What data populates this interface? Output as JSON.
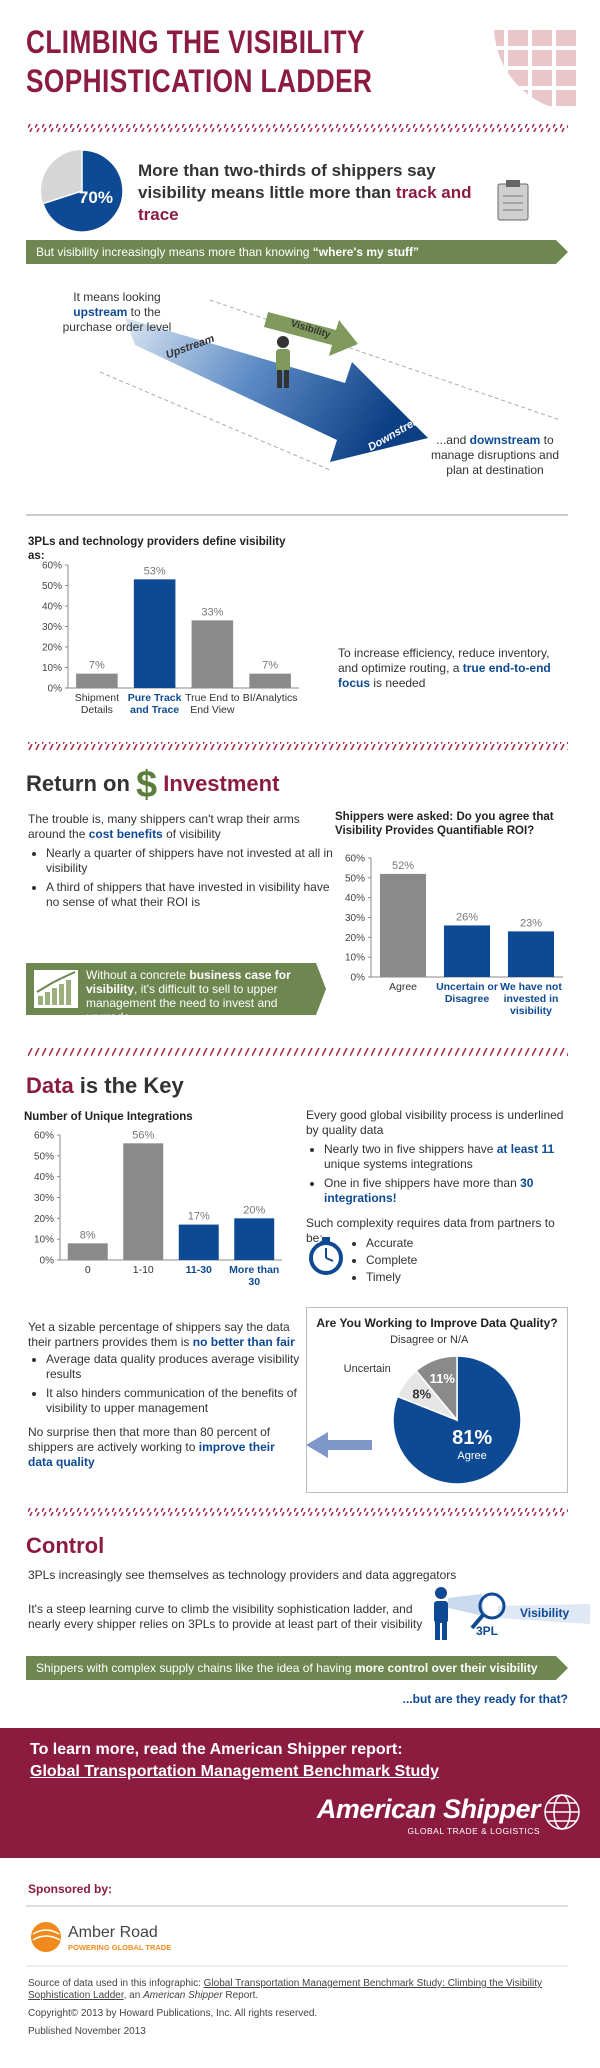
{
  "header": {
    "title_line1": "CLIMBING THE VISIBILITY",
    "title_line2": "SOPHISTICATION LADDER"
  },
  "intro": {
    "headline": [
      "More than two-thirds of shippers say visibility means little more than ",
      "track and trace"
    ],
    "banner": [
      "But visibility increasingly means more than knowing ",
      "“where's my stuff”"
    ]
  },
  "diagram": {
    "upstream_note": [
      "It means looking ",
      "upstream",
      " to the purchase order level"
    ],
    "upstream": "Upstream",
    "visibility": "Visibility",
    "downstream": "Downstream",
    "downstream_note": [
      "...and ",
      "downstream",
      " to manage disruptions and plan at destination"
    ]
  },
  "definition": {
    "note": [
      "To increase efficiency, reduce inventory, and optimize routing, a ",
      "true end-to-end focus",
      " is needed"
    ]
  },
  "roi": {
    "heading": [
      "Return on",
      "$",
      "Investment"
    ],
    "intro": [
      "The trouble is, many shippers can't wrap their arms around the ",
      "cost benefits",
      " of visibility"
    ],
    "bullets": [
      "Nearly a quarter of shippers have not invested at all in visibility",
      "A third of shippers that have invested in visibility have no sense of what their ROI is"
    ],
    "callout": [
      "Without a concrete ",
      "business case for visibility",
      ", it's difficult to sell to upper management the need to invest and upgrade"
    ]
  },
  "data": {
    "heading": [
      "Data",
      " is the Key"
    ],
    "quality_intro": "Every good global visibility process is underlined by quality data",
    "bullets": [
      [
        "Nearly two in five shippers have ",
        "at least 11",
        " unique systems integrations"
      ],
      [
        "One in five shippers have more than ",
        "30 integrations!"
      ]
    ],
    "requirements_intro": "Such complexity requires data from partners to be:",
    "requirements": [
      "Accurate",
      "Complete",
      "Timely"
    ],
    "partners": [
      "Yet a sizable percentage of shippers say the data their partners provides them is ",
      "no better than fair"
    ],
    "partner_bullets": [
      "Average data quality produces average visibility results",
      "It also hinders communication of the benefits of visibility to upper management"
    ],
    "conclusion": [
      "No surprise then that more than 80 percent of shippers are actively working to ",
      "improve their data quality"
    ]
  },
  "control": {
    "heading": "Control",
    "intro": "3PLs increasingly see themselves as technology providers and data aggregators",
    "body": "It's a steep learning curve to climb the visibility sophistication ladder, and nearly every shipper relies on 3PLs to provide at least part of their visibility",
    "icon_visibility": "Visibility",
    "icon_3pl": "3PL",
    "banner": [
      "Shippers with complex supply chains like the idea of having ",
      "more control over their visibility"
    ],
    "question": "...but are they ready for that?"
  },
  "footer": {
    "cta": "To learn more, read the American Shipper report:",
    "report": "Global Transportation Management Benchmark Study",
    "brand": "American Shipper",
    "brand_tagline": "GLOBAL TRADE & LOGISTICS",
    "sponsored": "Sponsored by:",
    "sponsor": "Amber Road",
    "sponsor_tagline": "POWERING GLOBAL TRADE",
    "source": [
      "Source of data used in this infographic: ",
      "Global Transportation Management Benchmark Study: Climbing the Visibility Sophistication Ladder",
      ", an ",
      "American Shipper",
      " Report."
    ],
    "copyright": "Copyright© 2013 by Howard Publications, Inc. All rights reserved.",
    "published": "Published November 2013"
  },
  "chart_data": [
    {
      "type": "pie",
      "values": [
        70
      ],
      "value_labels": [
        "70%"
      ],
      "colors": [
        "#0d4a93"
      ]
    },
    {
      "type": "bar",
      "title": "3PLs and technology providers define visibility as:",
      "categories": [
        "Shipment Details",
        "Pure Track and Trace",
        "True End to End View",
        "BI/Analytics"
      ],
      "values": [
        7,
        53,
        33,
        7
      ],
      "value_labels": [
        "7%",
        "53%",
        "33%",
        "7%"
      ],
      "colors": [
        "#8a8a8a",
        "#0d4a93",
        "#8a8a8a",
        "#8a8a8a"
      ],
      "label_colors": [
        "#333333",
        "#0d4a93",
        "#333333",
        "#333333"
      ],
      "ylim": [
        0,
        60
      ],
      "yticks": [
        {
          "value": 0,
          "label": "0%"
        },
        {
          "value": 10,
          "label": "10%"
        },
        {
          "value": 20,
          "label": "20%"
        },
        {
          "value": 30,
          "label": "30%"
        },
        {
          "value": 40,
          "label": "40%"
        },
        {
          "value": 50,
          "label": "50%"
        },
        {
          "value": 60,
          "label": "60%"
        }
      ]
    },
    {
      "type": "bar",
      "title": "Shippers were asked: Do you agree that Visibility Provides Quantifiable ROI?",
      "categories": [
        "Agree",
        "Uncertain or Disagree",
        "We have not invested in visibility"
      ],
      "values": [
        52,
        26,
        23
      ],
      "value_labels": [
        "52%",
        "26%",
        "23%"
      ],
      "colors": [
        "#8a8a8a",
        "#0d4a93",
        "#0d4a93"
      ],
      "label_colors": [
        "#333333",
        "#0d4a93",
        "#0d4a93"
      ],
      "ylim": [
        0,
        60
      ],
      "yticks": [
        {
          "value": 0,
          "label": "0%"
        },
        {
          "value": 10,
          "label": "10%"
        },
        {
          "value": 20,
          "label": "20%"
        },
        {
          "value": 30,
          "label": "30%"
        },
        {
          "value": 40,
          "label": "40%"
        },
        {
          "value": 50,
          "label": "50%"
        },
        {
          "value": 60,
          "label": "60%"
        }
      ]
    },
    {
      "type": "bar",
      "title": "Number of Unique Integrations",
      "categories": [
        "0",
        "1-10",
        "11-30",
        "More than 30"
      ],
      "values": [
        8,
        56,
        17,
        20
      ],
      "value_labels": [
        "8%",
        "56%",
        "17%",
        "20%"
      ],
      "colors": [
        "#8a8a8a",
        "#8a8a8a",
        "#0d4a93",
        "#0d4a93"
      ],
      "label_colors": [
        "#333333",
        "#333333",
        "#0d4a93",
        "#0d4a93"
      ],
      "ylim": [
        0,
        60
      ],
      "yticks": [
        {
          "value": 0,
          "label": "0%"
        },
        {
          "value": 10,
          "label": "10%"
        },
        {
          "value": 20,
          "label": "20%"
        },
        {
          "value": 30,
          "label": "30%"
        },
        {
          "value": 40,
          "label": "40%"
        },
        {
          "value": 50,
          "label": "50%"
        },
        {
          "value": 60,
          "label": "60%"
        }
      ]
    },
    {
      "type": "pie",
      "title": "Are You Working to Improve Data Quality?",
      "categories": [
        "Agree",
        "Uncertain",
        "Disagree or N/A"
      ],
      "values": [
        81,
        8,
        11
      ],
      "value_labels": [
        "81%",
        "8%",
        "11%"
      ],
      "colors": [
        "#0d4a93",
        "#e6e6e6",
        "#8a8a8a"
      ]
    }
  ]
}
